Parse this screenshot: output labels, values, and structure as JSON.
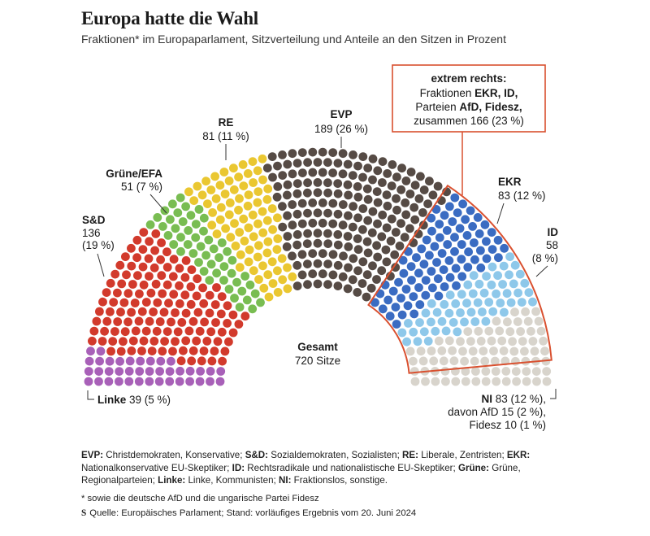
{
  "header": {
    "title": "Europa hatte die Wahl",
    "subtitle": "Fraktionen* im Europaparlament, Sitzverteilung und Anteile an den Sitzen in Prozent"
  },
  "chart_data": {
    "type": "parliament",
    "total_label": "Gesamt",
    "total_value": "720 Sitze",
    "total": 720,
    "series": [
      {
        "name": "Linke",
        "seats": 39,
        "share": "5 %",
        "color": "#a860b8"
      },
      {
        "name": "S&D",
        "seats": 136,
        "share": "19 %",
        "color": "#d23a2c"
      },
      {
        "name": "Grüne/EFA",
        "seats": 51,
        "share": "7 %",
        "color": "#79bd52"
      },
      {
        "name": "RE",
        "seats": 81,
        "share": "11 %",
        "color": "#eac731"
      },
      {
        "name": "EVP",
        "seats": 189,
        "share": "26 %",
        "color": "#564b45"
      },
      {
        "name": "EKR",
        "seats": 83,
        "share": "12 %",
        "color": "#3a6cc2"
      },
      {
        "name": "ID",
        "seats": 58,
        "share": "8 %",
        "color": "#8ec8ea"
      },
      {
        "name": "NI",
        "seats": 83,
        "share": "12 %",
        "color": "#d8d4cc"
      }
    ],
    "labels": {
      "linke": "39 (5 %)",
      "sd_count": "136",
      "sd_share": "(19 %)",
      "gruene": "51 (7 %)",
      "re": "81 (11 %)",
      "evp": "189 (26 %)",
      "ekr": "83 (12 %)",
      "id_count": "58",
      "id_share": "(8 %)",
      "ni": "83 (12 %),",
      "ni_afd": "davon AfD 15 (2 %),",
      "ni_fidesz": "Fidesz 10 (1 %)"
    },
    "annotation": {
      "heading": "extrem rechts:",
      "line1_prefix": "Fraktionen ",
      "line1_bold": "EKR, ID,",
      "line2_prefix": "Parteien ",
      "line2_bold": "AfD, Fidesz,",
      "line3": "zusammen 166 (23 %)"
    }
  },
  "legend": {
    "evp_abbr": "EVP:",
    "evp_text": " Christdemokraten, Konservative; ",
    "sd_abbr": "S&D:",
    "sd_text": " Sozialdemokraten, Sozialisten; ",
    "re_abbr": "RE:",
    "re_text": " Liberale, Zentristen; ",
    "ekr_abbr": "EKR:",
    "ekr_text": " Nationalkonservative EU-Skeptiker; ",
    "id_abbr": "ID:",
    "id_text": " Rechtsradikale und nationalistische EU-Skeptiker; ",
    "gruene_abbr": "Grüne:",
    "gruene_text": " Grüne, Regionalparteien; ",
    "linke_abbr": "Linke:",
    "linke_text": " Linke, Kommunisten; ",
    "ni_abbr": "NI:",
    "ni_text": " Fraktionslos, sonstige."
  },
  "footnote": "* sowie die deutsche AfD und die ungarische Partei Fidesz",
  "source": {
    "logo": "S",
    "text": "Quelle: Europäisches Parlament; Stand: vorläufiges Ergebnis vom 20. Juni 2024"
  }
}
